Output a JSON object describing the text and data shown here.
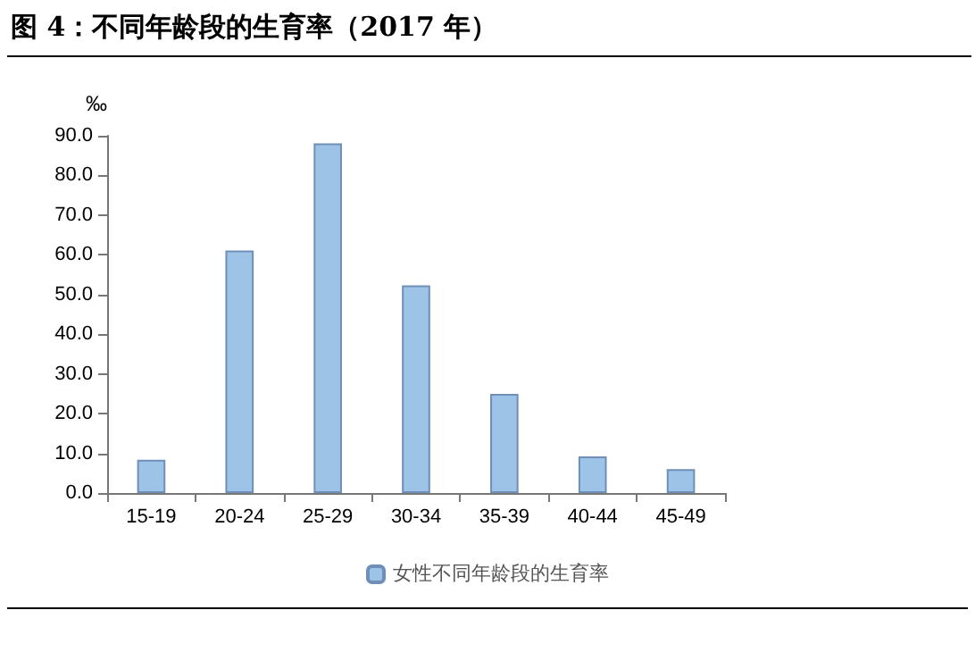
{
  "chart_data": {
    "type": "bar",
    "title": "图 4：不同年龄段的生育率（2017 年）",
    "ylabel": "‰",
    "categories": [
      "15-19",
      "20-24",
      "25-29",
      "30-34",
      "35-39",
      "40-44",
      "45-49"
    ],
    "series": [
      {
        "name": "女性不同年龄段的生育率",
        "color": "#9dc3e6",
        "values": [
          8.4,
          61.1,
          88.1,
          52.3,
          25.0,
          9.2,
          6.0
        ]
      }
    ],
    "ylim": [
      0,
      90
    ],
    "yticks": [
      {
        "value": 0,
        "label": "0.0"
      },
      {
        "value": 10,
        "label": "10.0"
      },
      {
        "value": 20,
        "label": "20.0"
      },
      {
        "value": 30,
        "label": "30.0"
      },
      {
        "value": 40,
        "label": "40.0"
      },
      {
        "value": 50,
        "label": "50.0"
      },
      {
        "value": 60,
        "label": "60.0"
      },
      {
        "value": 70,
        "label": "70.0"
      },
      {
        "value": 80,
        "label": "80.0"
      },
      {
        "value": 90,
        "label": "90.0"
      }
    ],
    "grid": false,
    "legend": "bottom"
  }
}
